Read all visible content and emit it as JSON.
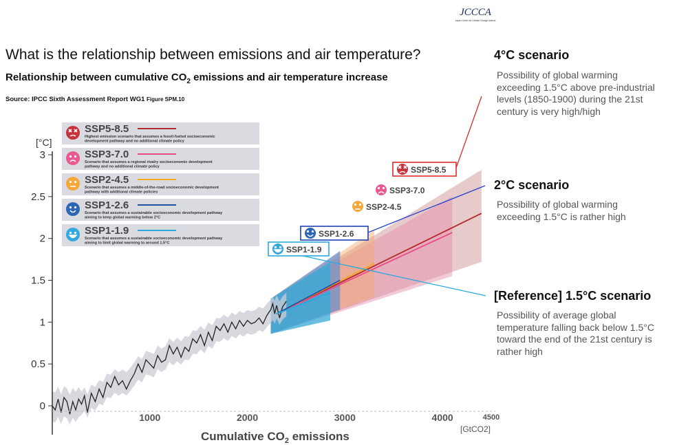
{
  "logo": {
    "text": "JCCCA",
    "caption": "Japan Center for Climate Change Actions"
  },
  "title": "What is the relationship between emissions and air temperature?",
  "subtitle": {
    "before": "Relationship between cumulative CO",
    "sub": "2",
    "after": " emissions and air temperature increase"
  },
  "source": {
    "text": "Source: IPCC Sixth Assessment Report WG1 ",
    "fig": "Figure SPM.10"
  },
  "scenarios": [
    {
      "title": "4°C scenario",
      "desc": [
        "Possibility of global warming",
        "exceeding 1.5°C above pre-industrial",
        "levels (1850-1900) during the 21st",
        "century is very high/high"
      ]
    },
    {
      "title": "2°C scenario",
      "desc": [
        "Possibility of global warming",
        "exceeding 1.5°C is rather high"
      ]
    },
    {
      "title": "[Reference] 1.5°C scenario",
      "desc": [
        "Possibility of average global",
        "temperature falling back below 1.5°C",
        "toward the end of the 21st century is",
        "rather high"
      ]
    }
  ],
  "chart_data": {
    "type": "line",
    "xlabel": {
      "before": "Cumulative CO",
      "sub": "2",
      "after": " emissions"
    },
    "xunit": "[GtCO2]",
    "yunit": "[°C]",
    "xlim": [
      0,
      4500
    ],
    "ylim": [
      0,
      3
    ],
    "xticks": [
      1000,
      2000,
      3000,
      4000,
      4500
    ],
    "yticks": [
      0,
      0.5,
      1,
      1.5,
      2,
      2.5,
      3
    ],
    "historical": {
      "x": [
        0,
        30,
        60,
        90,
        120,
        150,
        180,
        210,
        240,
        270,
        300,
        330,
        360,
        400,
        440,
        480,
        520,
        560,
        600,
        640,
        680,
        720,
        760,
        800,
        840,
        880,
        920,
        960,
        1000,
        1040,
        1080,
        1120,
        1160,
        1200,
        1240,
        1280,
        1320,
        1360,
        1400,
        1440,
        1480,
        1520,
        1560,
        1600,
        1640,
        1680,
        1720,
        1760,
        1800,
        1840,
        1880,
        1920,
        1960,
        2000,
        2040,
        2080,
        2120,
        2160,
        2200,
        2240,
        2260,
        2280,
        2300,
        2330,
        2360,
        2400
      ],
      "y": [
        0,
        -0.05,
        0.08,
        -0.08,
        0.1,
        0.05,
        -0.1,
        0.05,
        -0.05,
        0.08,
        0.02,
        0.12,
        -0.08,
        0.15,
        0.05,
        0.2,
        0.1,
        0.28,
        0.22,
        0.35,
        0.25,
        0.3,
        0.2,
        0.3,
        0.38,
        0.5,
        0.4,
        0.55,
        0.5,
        0.45,
        0.6,
        0.52,
        0.55,
        0.72,
        0.62,
        0.7,
        0.58,
        0.7,
        0.65,
        0.8,
        0.75,
        0.85,
        0.72,
        0.88,
        0.78,
        0.95,
        0.9,
        0.98,
        0.88,
        1.0,
        0.92,
        1.02,
        0.95,
        1.02,
        0.98,
        1.0,
        1.05,
        0.98,
        1.08,
        1.15,
        1.22,
        1.1,
        1.2,
        1.05,
        1.18,
        1.25
      ]
    },
    "series": [
      {
        "name": "SSP5-8.5",
        "color": "#b3272d",
        "desc": "Highest emission scenario that assumes a fossil-fueled socioeconomic development pathway and no additional climate policy",
        "x": [
          2300,
          4400
        ],
        "y": [
          1.1,
          2.3
        ],
        "range_end": [
          1.72,
          2.82
        ]
      },
      {
        "name": "SSP3-7.0",
        "color": "#e84a8a",
        "desc": "Scenario that assumes a regional rivalry socioeconomic development pathway and no additional climate policy",
        "x": [
          2300,
          4100
        ],
        "y": [
          1.1,
          2.07
        ],
        "range_end": [
          1.55,
          2.5
        ]
      },
      {
        "name": "SSP2-4.5",
        "color": "#f5a623",
        "desc": "Scenario that assumes a middle-of-the-road socioeconomic development pathway with additional climate policies",
        "x": [
          2300,
          3300
        ],
        "y": [
          1.1,
          1.7
        ],
        "range_end": [
          1.3,
          2.1
        ]
      },
      {
        "name": "SSP1-2.6",
        "color": "#1f4fa0",
        "desc": "Scenario that assumes a sustainable socioeconomic development pathway aiming to keep global warming below 2°C",
        "x": [
          2300,
          2950
        ],
        "y": [
          1.1,
          1.5
        ],
        "range_end": [
          1.15,
          1.85
        ]
      },
      {
        "name": "SSP1-1.9",
        "color": "#29a8e0",
        "desc": "Scenario that assumes a sustainable socioeconomic development pathway aiming to limit global warming to around 1.5°C",
        "x": [
          2300,
          2850
        ],
        "y": [
          1.1,
          1.35
        ],
        "range_end": [
          1.02,
          1.72
        ]
      }
    ]
  }
}
